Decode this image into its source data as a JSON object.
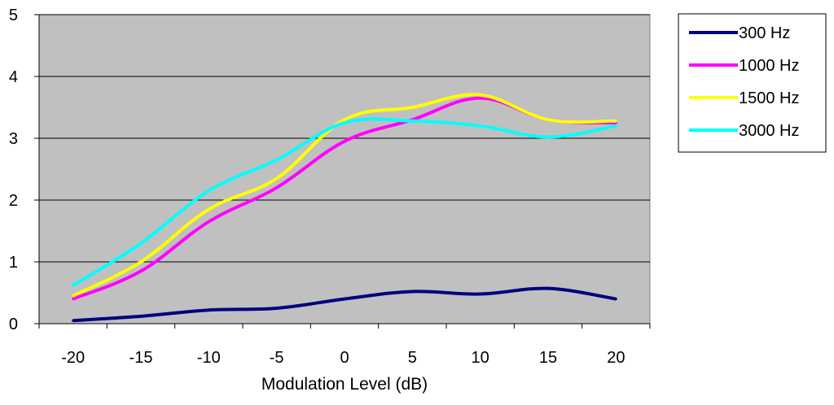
{
  "chart_data": {
    "type": "line",
    "title": "",
    "xlabel": "Modulation Level (dB)",
    "ylabel": "",
    "x": [
      -20,
      -15,
      -10,
      -5,
      0,
      5,
      10,
      15,
      20
    ],
    "xlim": [
      -22.5,
      22.5
    ],
    "ylim": [
      0,
      5
    ],
    "x_ticks": [
      "-20",
      "-15",
      "-10",
      "-5",
      "0",
      "5",
      "10",
      "15",
      "20"
    ],
    "y_ticks": [
      "0",
      "1",
      "2",
      "3",
      "4",
      "5"
    ],
    "grid": "horizontal",
    "plot_background": "#c0c0c0",
    "legend_position": "right",
    "series": [
      {
        "name": "300 Hz",
        "color": "#000080",
        "values": [
          0.05,
          0.12,
          0.22,
          0.25,
          0.4,
          0.52,
          0.48,
          0.57,
          0.4
        ]
      },
      {
        "name": "1000 Hz",
        "color": "#ff00ff",
        "values": [
          0.4,
          0.85,
          1.65,
          2.2,
          2.95,
          3.3,
          3.65,
          3.3,
          3.25
        ]
      },
      {
        "name": "1500 Hz",
        "color": "#ffff00",
        "values": [
          0.45,
          1.0,
          1.85,
          2.35,
          3.3,
          3.5,
          3.7,
          3.3,
          3.28
        ]
      },
      {
        "name": "3000 Hz",
        "color": "#00ffff",
        "values": [
          0.62,
          1.3,
          2.15,
          2.65,
          3.25,
          3.28,
          3.2,
          3.02,
          3.2
        ]
      }
    ]
  }
}
